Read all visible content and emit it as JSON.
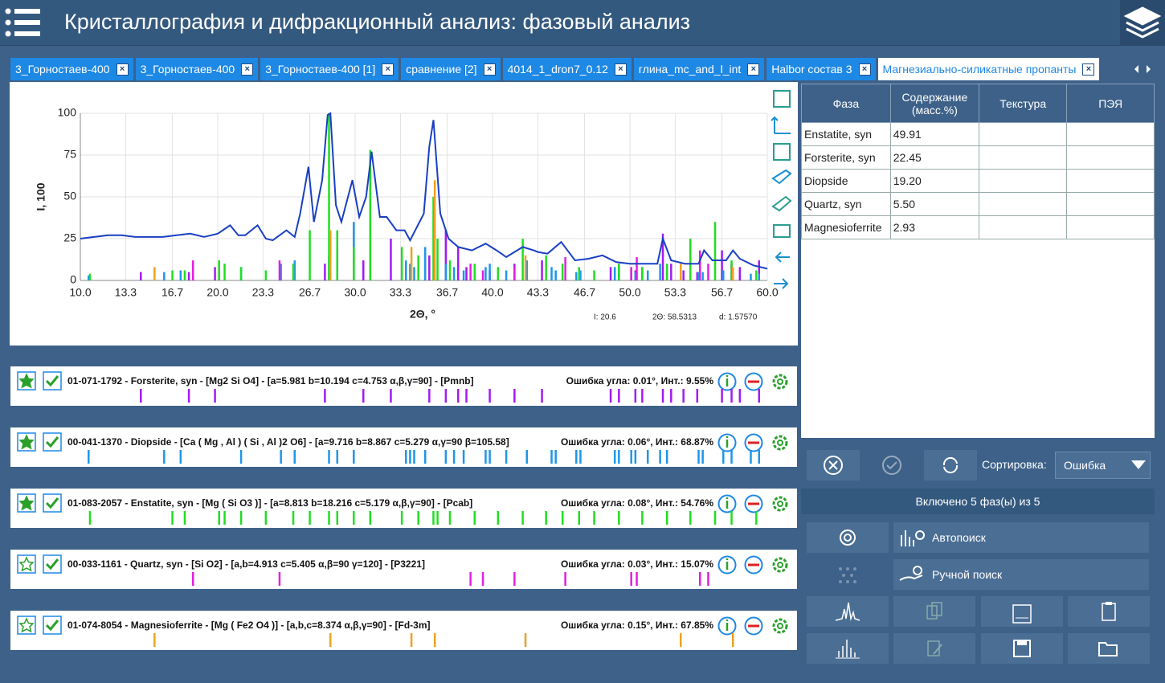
{
  "header": {
    "title": "Кристаллография и дифракционный анализ: фазовый анализ"
  },
  "tabs": [
    "3_Горностаев-400",
    "3_Горностаев-400",
    "3_Горностаев-400 [1]",
    "сравнение [2]",
    "4014_1_dron7_0.12",
    "глина_mc_and_l_int",
    "Halbor состав 3",
    "Магнезиально-силикатные пропанты"
  ],
  "active_tab": 7,
  "chart_data": {
    "type": "line",
    "xlabel": "2Θ, °",
    "ylabel": "I, 100",
    "xlim": [
      10,
      60
    ],
    "ylim": [
      0,
      100
    ],
    "xticks": [
      {
        "value": 10,
        "label": "10.0"
      },
      13.3,
      16.7,
      {
        "value": 20,
        "label": "20.0"
      },
      23.3,
      26.7,
      {
        "value": 30,
        "label": "30.0"
      },
      33.3,
      36.7,
      {
        "value": 40,
        "label": "40.0"
      },
      43.3,
      46.7,
      {
        "value": 50,
        "label": "50.0"
      },
      53.3,
      56.7,
      {
        "value": 60,
        "label": "60.0"
      }
    ],
    "yticks": [
      0,
      25,
      50,
      75,
      100
    ],
    "grid": true,
    "x": [
      10,
      11,
      12,
      13,
      14,
      15,
      16,
      17,
      18,
      19,
      20,
      20.9,
      21.5,
      22,
      22.9,
      23.5,
      24,
      25,
      25.6,
      26,
      26.6,
      27,
      27.6,
      28,
      28.2,
      28.6,
      29,
      29.8,
      30.3,
      30.8,
      31.2,
      31.8,
      32.3,
      33,
      33.6,
      34,
      35,
      35.4,
      35.7,
      36.2,
      36.8,
      37.5,
      38.5,
      39.5,
      40.3,
      41,
      42.2,
      43,
      43.3,
      44,
      45,
      46,
      47,
      48,
      49,
      50,
      51,
      52,
      52.4,
      53,
      54,
      55,
      55.4,
      56,
      57,
      57.5,
      58,
      59,
      60
    ],
    "series": [
      {
        "color": "#1a3fc4",
        "values": [
          25,
          26,
          27,
          27,
          26,
          26,
          26,
          27,
          28,
          26,
          28,
          33,
          27,
          27,
          33,
          25,
          24,
          30,
          26,
          40,
          68,
          35,
          60,
          99,
          100,
          45,
          35,
          60,
          38,
          50,
          77,
          38,
          38,
          30,
          30,
          24,
          40,
          80,
          96,
          40,
          25,
          20,
          18,
          22,
          18,
          14,
          20,
          18,
          17,
          16,
          23,
          12,
          13,
          15,
          11,
          10,
          10,
          10,
          25,
          12,
          10,
          10,
          18,
          12,
          12,
          18,
          13,
          9,
          7
        ]
      }
    ],
    "readout": [
      "I: 20.6",
      "2Θ: 58.5313",
      "d: 1.57570"
    ]
  },
  "phase_table": {
    "columns": [
      "Фаза",
      "Содержание (масс.%)",
      "Текстура",
      "ПЭЯ"
    ],
    "rows": [
      [
        "Enstatite, syn",
        "49.91"
      ],
      [
        "Forsterite, syn",
        "22.45"
      ],
      [
        "Diopside",
        "19.20"
      ],
      [
        "Quartz, syn",
        "5.50"
      ],
      [
        "Magnesioferrite",
        "2.93"
      ]
    ]
  },
  "phases": [
    {
      "favorite": true,
      "enabled": true,
      "label": "01-071-1792 - Forsterite, syn - [Mg2 Si O4] - [a=5.981 b=10.194 c=4.753 α,β,γ=90] - [Pmnb]",
      "error": "Ошибка угла: 0.01°, Инт.: 9.55%",
      "color": "#a21cf0",
      "peaks": [
        14.4,
        17.9,
        19.8,
        27.8,
        30.6,
        32.6,
        35.4,
        36.6,
        37.5,
        38.1,
        39.8,
        41.6,
        43.6,
        48.6,
        49.2,
        50.4,
        50.9,
        52.4,
        53,
        53.9,
        54.9,
        56.7,
        57.4,
        58,
        59.4
      ],
      "heights": [
        5,
        5,
        8,
        10,
        12,
        25,
        15,
        30,
        20,
        8,
        6,
        10,
        12,
        8,
        10,
        6,
        8,
        28,
        10,
        6,
        5,
        18,
        10,
        8,
        12
      ]
    },
    {
      "favorite": true,
      "enabled": true,
      "label": "00-041-1370 - Diopside - [Ca ( Mg , Al ) ( Si , Al )2 O6] - [a=9.716 b=8.867 c=5.279 α,γ=90 β=105.58]",
      "error": "Ошибка угла: 0.06°, Инт.: 68.87%",
      "color": "#1e96e8",
      "peaks": [
        10.6,
        16.1,
        17.3,
        21.7,
        24.6,
        25.6,
        28.1,
        28.7,
        29.9,
        33.7,
        34,
        34.3,
        35.1,
        36.6,
        37.2,
        37.9,
        39.5,
        39.8,
        41,
        42.5,
        44.3,
        44.6,
        46.1,
        46.4,
        48.9,
        49.2,
        50.1,
        50.4,
        51.3,
        52.2,
        52.7,
        55,
        55.3,
        56.8,
        57.4,
        58.8,
        59.4
      ],
      "heights": [
        3,
        5,
        6,
        8,
        10,
        12,
        15,
        20,
        35,
        12,
        10,
        8,
        20,
        10,
        8,
        6,
        8,
        10,
        6,
        12,
        8,
        6,
        5,
        6,
        8,
        6,
        5,
        5,
        6,
        10,
        6,
        5,
        5,
        6,
        5,
        4,
        4
      ]
    },
    {
      "favorite": true,
      "enabled": true,
      "label": "01-083-2057 - Enstatite, syn - [Mg ( Si O3 )] - [a=8.813 b=18.216 c=5.179 α,β,γ=90] - [Pcab]",
      "error": "Ошибка угла: 0.08°, Инт.: 54.76%",
      "color": "#22dd22",
      "peaks": [
        10.7,
        16.7,
        17.6,
        20.1,
        20.5,
        21.7,
        23.5,
        25.5,
        26.7,
        28.1,
        28.7,
        29.9,
        31.1,
        33.4,
        34.6,
        35.7,
        36,
        36.9,
        38.7,
        40.4,
        42.2,
        43.9,
        45.1,
        46.3,
        47.4,
        49.2,
        50.9,
        52.7,
        54.4,
        56.2,
        57.4,
        59.2
      ],
      "heights": [
        4,
        6,
        6,
        12,
        10,
        8,
        6,
        10,
        30,
        100,
        30,
        20,
        78,
        20,
        15,
        50,
        25,
        12,
        10,
        8,
        25,
        15,
        10,
        8,
        6,
        10,
        8,
        10,
        25,
        35,
        12,
        6
      ]
    },
    {
      "favorite": false,
      "enabled": true,
      "label": "00-033-1161 - Quartz, syn - [Si O2] - [a,b=4.913 c=5.405 α,β=90 γ=120] - [P3221]",
      "error": "Ошибка угла: 0.03°, Инт.: 15.07%",
      "color": "#e020e0",
      "peaks": [
        18.2,
        24.5,
        38.4,
        39.3,
        41.6,
        45.3,
        50.1,
        50.5,
        55.1,
        55.7
      ],
      "heights": [
        12,
        12,
        10,
        6,
        8,
        14,
        8,
        14,
        18,
        10
      ]
    },
    {
      "favorite": false,
      "enabled": true,
      "label": "01-074-8054 - Magnesioferrite - [Mg ( Fe2 O4 )] - [a,b,c=8.374 α,β,γ=90] - [Fd-3m]",
      "error": "Ошибка угла: 0.15°, Инт.: 67.85%",
      "color": "#f0a020",
      "peaks": [
        15.4,
        28.2,
        34.1,
        35.8,
        42.4,
        53.7,
        57.5
      ],
      "heights": [
        8,
        30,
        20,
        60,
        15,
        10,
        8
      ]
    }
  ],
  "controls": {
    "sort_label": "Сортировка:",
    "sort_value": "Ошибка",
    "enabled_summary": "Включено 5 фаз(ы) из 5",
    "autosearch": "Автопоиск",
    "manual_search": "Ручной поиск"
  }
}
